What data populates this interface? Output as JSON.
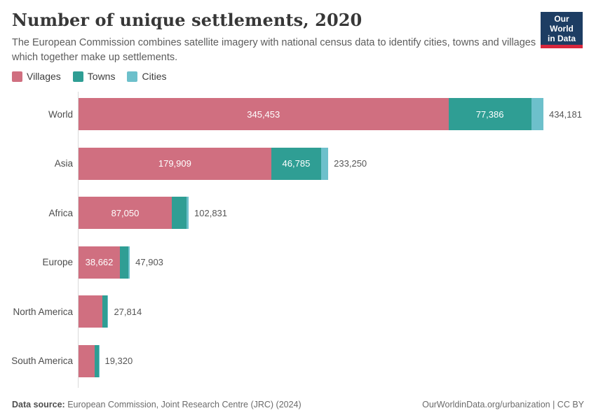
{
  "header": {
    "title": "Number of unique settlements, 2020",
    "subtitle": "The European Commission combines satellite imagery with national census data to identify cities, towns and villages which together make up settlements.",
    "logo": {
      "line1": "Our World",
      "line2": "in Data",
      "bg_color": "#1d3d63",
      "stripe_color": "#d8273d"
    }
  },
  "legend": [
    {
      "label": "Villages",
      "color": "#d06f80"
    },
    {
      "label": "Towns",
      "color": "#2f9e94"
    },
    {
      "label": "Cities",
      "color": "#6dc0cb"
    }
  ],
  "chart_data": {
    "type": "bar",
    "orientation": "horizontal",
    "stacked": true,
    "grid": false,
    "legend_position": "top-left",
    "categories": [
      "World",
      "Asia",
      "Africa",
      "Europe",
      "North America",
      "South America"
    ],
    "series": [
      {
        "name": "Villages",
        "color": "#d06f80",
        "values": [
          345453,
          179909,
          87050,
          38662,
          22264,
          14800
        ]
      },
      {
        "name": "Towns",
        "color": "#2f9e94",
        "values": [
          77386,
          46785,
          13816,
          8000,
          4900,
          4100
        ]
      },
      {
        "name": "Cities",
        "color": "#6dc0cb",
        "values": [
          11342,
          6556,
          1965,
          1241,
          650,
          420
        ]
      }
    ],
    "totals": [
      434181,
      233250,
      102831,
      47903,
      27814,
      19320
    ],
    "segment_labels": [
      [
        "345,453",
        "77,386",
        ""
      ],
      [
        "179,909",
        "46,785",
        ""
      ],
      [
        "87,050",
        "",
        ""
      ],
      [
        "38,662",
        "",
        ""
      ],
      [
        "",
        "",
        ""
      ],
      [
        "",
        "",
        ""
      ]
    ],
    "total_labels": [
      "434,181",
      "233,250",
      "102,831",
      "47,903",
      "27,814",
      "19,320"
    ],
    "xlim": [
      0,
      434181
    ]
  },
  "footer": {
    "source_bold": "Data source:",
    "source_rest": " European Commission, Joint Research Centre (JRC) (2024)",
    "right": "OurWorldinData.org/urbanization | CC BY"
  }
}
